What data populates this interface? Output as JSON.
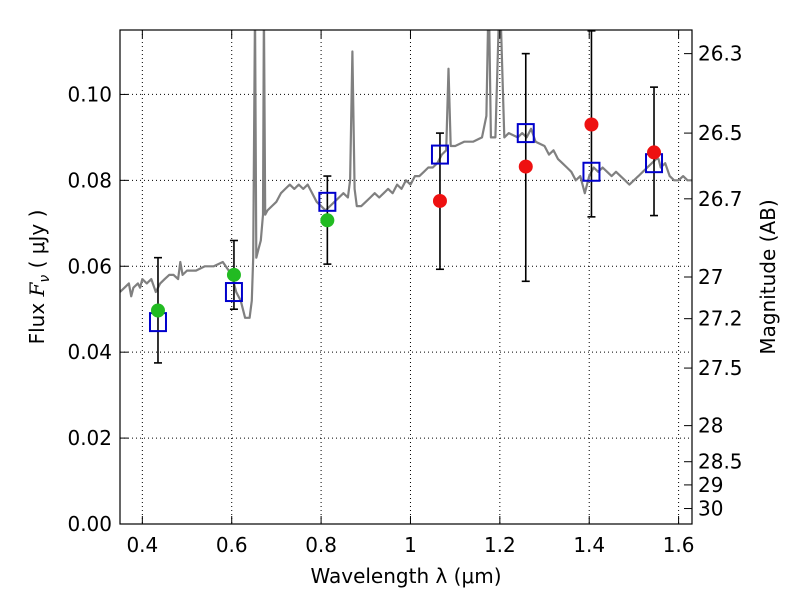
{
  "chart_data": {
    "type": "scatter",
    "xlabel": "Wavelength  λ (μm)",
    "ylabel_prefix": "Flux  ",
    "ylabel_symbol": "F",
    "ylabel_sub": "ν",
    "ylabel_unit": "  ( μJy )",
    "y2label": "Magnitude (AB)",
    "xlim": [
      0.35,
      1.63
    ],
    "ylim": [
      0.0,
      0.115
    ],
    "grid": true,
    "grid_style": "dotted",
    "x_ticks": [
      0.4,
      0.6,
      0.8,
      1.0,
      1.2,
      1.4,
      1.6
    ],
    "x_tick_labels": [
      "0.4",
      "0.6",
      "0.8",
      "1",
      "1.2",
      "1.4",
      "1.6"
    ],
    "y_ticks": [
      0.0,
      0.02,
      0.04,
      0.06,
      0.08,
      0.1
    ],
    "y_tick_labels": [
      "0.00",
      "0.02",
      "0.04",
      "0.06",
      "0.08",
      "0.10"
    ],
    "y2_ticks": [
      {
        "label": "26.3",
        "flux": 0.1095
      },
      {
        "label": "26.5",
        "flux": 0.091
      },
      {
        "label": "26.7",
        "flux": 0.0757
      },
      {
        "label": "27",
        "flux": 0.0575
      },
      {
        "label": "27.2",
        "flux": 0.0478
      },
      {
        "label": "27.5",
        "flux": 0.0363
      },
      {
        "label": "28",
        "flux": 0.0229
      },
      {
        "label": "28.5",
        "flux": 0.0145
      },
      {
        "label": "29",
        "flux": 0.0091
      },
      {
        "label": "30",
        "flux": 0.0036
      }
    ],
    "series": [
      {
        "role": "model-spectrum",
        "color": "#808080",
        "points": [
          [
            0.35,
            0.054
          ],
          [
            0.36,
            0.055
          ],
          [
            0.37,
            0.056
          ],
          [
            0.375,
            0.053
          ],
          [
            0.38,
            0.055
          ],
          [
            0.39,
            0.056
          ],
          [
            0.395,
            0.055
          ],
          [
            0.4,
            0.057
          ],
          [
            0.41,
            0.056
          ],
          [
            0.42,
            0.057
          ],
          [
            0.43,
            0.054
          ],
          [
            0.44,
            0.056
          ],
          [
            0.45,
            0.057
          ],
          [
            0.46,
            0.058
          ],
          [
            0.47,
            0.058
          ],
          [
            0.48,
            0.057
          ],
          [
            0.485,
            0.061
          ],
          [
            0.49,
            0.058
          ],
          [
            0.5,
            0.059
          ],
          [
            0.52,
            0.059
          ],
          [
            0.54,
            0.06
          ],
          [
            0.56,
            0.06
          ],
          [
            0.58,
            0.061
          ],
          [
            0.6,
            0.058
          ],
          [
            0.61,
            0.054
          ],
          [
            0.615,
            0.053
          ],
          [
            0.62,
            0.052
          ],
          [
            0.625,
            0.05
          ],
          [
            0.63,
            0.048
          ],
          [
            0.64,
            0.048
          ],
          [
            0.645,
            0.052
          ],
          [
            0.648,
            0.062
          ],
          [
            0.652,
            0.12
          ],
          [
            0.655,
            0.062
          ],
          [
            0.66,
            0.064
          ],
          [
            0.665,
            0.066
          ],
          [
            0.67,
            0.072
          ],
          [
            0.672,
            0.12
          ],
          [
            0.675,
            0.072
          ],
          [
            0.68,
            0.073
          ],
          [
            0.69,
            0.074
          ],
          [
            0.7,
            0.075
          ],
          [
            0.71,
            0.077
          ],
          [
            0.72,
            0.078
          ],
          [
            0.73,
            0.079
          ],
          [
            0.74,
            0.078
          ],
          [
            0.75,
            0.079
          ],
          [
            0.76,
            0.078
          ],
          [
            0.77,
            0.079
          ],
          [
            0.78,
            0.077
          ],
          [
            0.79,
            0.075
          ],
          [
            0.8,
            0.074
          ],
          [
            0.81,
            0.073
          ],
          [
            0.82,
            0.074
          ],
          [
            0.83,
            0.075
          ],
          [
            0.84,
            0.076
          ],
          [
            0.85,
            0.077
          ],
          [
            0.86,
            0.076
          ],
          [
            0.865,
            0.08
          ],
          [
            0.87,
            0.11
          ],
          [
            0.875,
            0.078
          ],
          [
            0.88,
            0.074
          ],
          [
            0.89,
            0.074
          ],
          [
            0.9,
            0.075
          ],
          [
            0.91,
            0.076
          ],
          [
            0.92,
            0.077
          ],
          [
            0.93,
            0.076
          ],
          [
            0.94,
            0.077
          ],
          [
            0.95,
            0.078
          ],
          [
            0.96,
            0.077
          ],
          [
            0.97,
            0.079
          ],
          [
            0.98,
            0.078
          ],
          [
            0.99,
            0.08
          ],
          [
            1.0,
            0.079
          ],
          [
            1.01,
            0.081
          ],
          [
            1.02,
            0.081
          ],
          [
            1.03,
            0.082
          ],
          [
            1.04,
            0.083
          ],
          [
            1.05,
            0.083
          ],
          [
            1.06,
            0.084
          ],
          [
            1.07,
            0.086
          ],
          [
            1.08,
            0.087
          ],
          [
            1.085,
            0.106
          ],
          [
            1.09,
            0.088
          ],
          [
            1.1,
            0.088
          ],
          [
            1.12,
            0.089
          ],
          [
            1.14,
            0.089
          ],
          [
            1.16,
            0.09
          ],
          [
            1.17,
            0.095
          ],
          [
            1.175,
            0.125
          ],
          [
            1.18,
            0.09
          ],
          [
            1.19,
            0.09
          ],
          [
            1.2,
            0.125
          ],
          [
            1.21,
            0.09
          ],
          [
            1.22,
            0.091
          ],
          [
            1.24,
            0.09
          ],
          [
            1.25,
            0.091
          ],
          [
            1.26,
            0.09
          ],
          [
            1.27,
            0.092
          ],
          [
            1.28,
            0.089
          ],
          [
            1.3,
            0.088
          ],
          [
            1.31,
            0.086
          ],
          [
            1.32,
            0.087
          ],
          [
            1.33,
            0.085
          ],
          [
            1.34,
            0.084
          ],
          [
            1.35,
            0.083
          ],
          [
            1.36,
            0.082
          ],
          [
            1.37,
            0.08
          ],
          [
            1.38,
            0.081
          ],
          [
            1.39,
            0.077
          ],
          [
            1.4,
            0.081
          ],
          [
            1.41,
            0.083
          ],
          [
            1.42,
            0.082
          ],
          [
            1.43,
            0.083
          ],
          [
            1.44,
            0.082
          ],
          [
            1.45,
            0.081
          ],
          [
            1.46,
            0.082
          ],
          [
            1.47,
            0.081
          ],
          [
            1.48,
            0.08
          ],
          [
            1.49,
            0.079
          ],
          [
            1.5,
            0.08
          ],
          [
            1.51,
            0.081
          ],
          [
            1.52,
            0.082
          ],
          [
            1.53,
            0.083
          ],
          [
            1.54,
            0.084
          ],
          [
            1.55,
            0.085
          ],
          [
            1.555,
            0.085
          ],
          [
            1.56,
            0.083
          ],
          [
            1.57,
            0.084
          ],
          [
            1.58,
            0.081
          ],
          [
            1.59,
            0.08
          ],
          [
            1.6,
            0.08
          ],
          [
            1.61,
            0.081
          ],
          [
            1.62,
            0.08
          ],
          [
            1.63,
            0.08
          ]
        ]
      },
      {
        "role": "model-photometry",
        "marker": "open-square",
        "color": "#0000cc",
        "points": [
          [
            0.435,
            0.047
          ],
          [
            0.605,
            0.054
          ],
          [
            0.814,
            0.075
          ],
          [
            1.066,
            0.086
          ],
          [
            1.258,
            0.091
          ],
          [
            1.405,
            0.082
          ],
          [
            1.545,
            0.084
          ]
        ]
      },
      {
        "role": "observed-optical",
        "marker": "filled-circle",
        "color": "#22bb22",
        "points": [
          [
            0.435,
            0.0497
          ],
          [
            0.605,
            0.058
          ],
          [
            0.814,
            0.0707
          ]
        ]
      },
      {
        "role": "observed-nir",
        "marker": "filled-circle",
        "color": "#ee1111",
        "points": [
          [
            1.066,
            0.0752
          ],
          [
            1.258,
            0.0832
          ],
          [
            1.405,
            0.093
          ],
          [
            1.545,
            0.0865
          ]
        ]
      }
    ],
    "error_bars": [
      {
        "x": 0.435,
        "low": 0.0375,
        "high": 0.062
      },
      {
        "x": 0.605,
        "low": 0.05,
        "high": 0.066
      },
      {
        "x": 0.814,
        "low": 0.0605,
        "high": 0.081
      },
      {
        "x": 1.066,
        "low": 0.0593,
        "high": 0.091
      },
      {
        "x": 1.258,
        "low": 0.0565,
        "high": 0.1095
      },
      {
        "x": 1.405,
        "low": 0.0715,
        "high": 0.1148
      },
      {
        "x": 1.545,
        "low": 0.0718,
        "high": 0.1017
      }
    ]
  }
}
